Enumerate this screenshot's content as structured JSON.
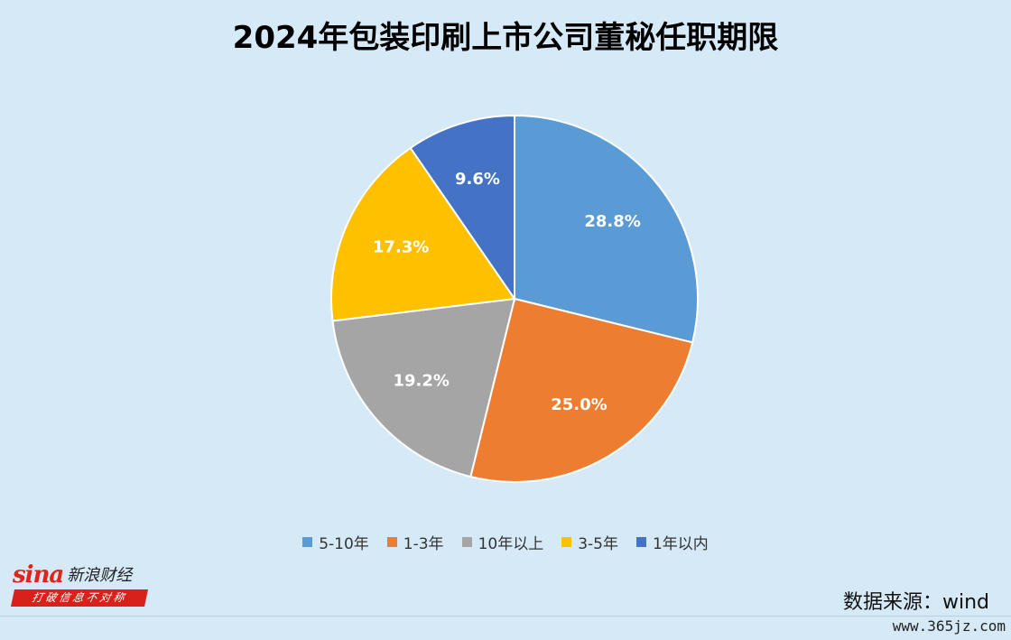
{
  "title": "2024年包装印刷上市公司董秘任职期限",
  "chart_data": {
    "type": "pie",
    "title": "2024年包装印刷上市公司董秘任职期限",
    "categories": [
      "5-10年",
      "1-3年",
      "10年以上",
      "3-5年",
      "1年以内"
    ],
    "values": [
      28.8,
      25.0,
      19.2,
      17.3,
      9.6
    ],
    "labels": [
      "28.8%",
      "25.0%",
      "19.2%",
      "17.3%",
      "9.6%"
    ],
    "colors": [
      "#5b9bd5",
      "#ed7d31",
      "#a5a5a5",
      "#ffc000",
      "#4472c4"
    ],
    "legend_position": "bottom"
  },
  "source": "数据来源：wind",
  "logo": {
    "brand": "sina",
    "name": "新浪财经",
    "slogan": "打破信息不对称"
  },
  "watermark": "www.365jz.com"
}
